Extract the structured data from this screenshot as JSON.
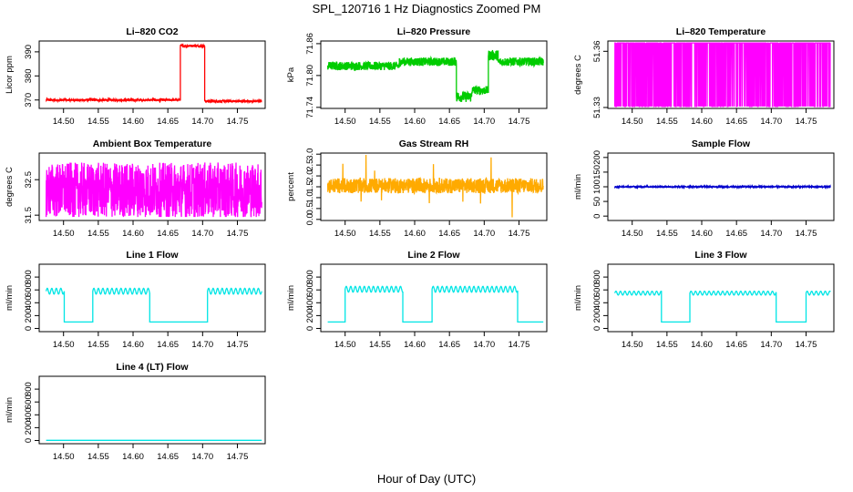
{
  "page_title": "SPL_120716  1 Hz Diagnostics Zoomed PM",
  "x_axis_label": "Hour of Day (UTC)",
  "colors": {
    "red": "#ff0000",
    "green": "#00cc00",
    "magenta": "#ff00ff",
    "orange": "#ffaa00",
    "blue": "#0000cc",
    "cyan": "#00e5e5"
  },
  "chart_data": [
    {
      "id": "co2",
      "type": "line",
      "title": "Li–820 CO2",
      "ylabel": "Licor ppm",
      "color": "red",
      "xlim": [
        14.465,
        14.79
      ],
      "ylim": [
        366.5,
        394.5
      ],
      "xticks": [
        "14.50",
        "14.55",
        "14.60",
        "14.65",
        "14.70",
        "14.75"
      ],
      "yticks": [
        "370",
        "380",
        "390"
      ],
      "segments": [
        {
          "x0": 14.475,
          "x1": 14.668,
          "level": 370.0,
          "noise": 0.45
        },
        {
          "x0": 14.668,
          "x1": 14.703,
          "level": 392.5,
          "noise": 0.5
        },
        {
          "x0": 14.703,
          "x1": 14.785,
          "level": 369.5,
          "noise": 0.45
        }
      ]
    },
    {
      "id": "pressure",
      "type": "line",
      "title": "Li–820 Pressure",
      "ylabel": "kPa",
      "color": "green",
      "xlim": [
        14.465,
        14.79
      ],
      "ylim": [
        71.738,
        71.865
      ],
      "xticks": [
        "14.50",
        "14.55",
        "14.60",
        "14.65",
        "14.70",
        "14.75"
      ],
      "yticks": [
        "71.74",
        "71.80",
        "71.86"
      ],
      "segments": [
        {
          "x0": 14.475,
          "x1": 14.578,
          "level": 71.818,
          "noise": 0.008
        },
        {
          "x0": 14.578,
          "x1": 14.66,
          "level": 71.826,
          "noise": 0.008
        },
        {
          "x0": 14.66,
          "x1": 14.682,
          "level": 71.76,
          "noise": 0.01
        },
        {
          "x0": 14.682,
          "x1": 14.706,
          "level": 71.772,
          "noise": 0.008
        },
        {
          "x0": 14.706,
          "x1": 14.72,
          "level": 71.838,
          "noise": 0.01
        },
        {
          "x0": 14.72,
          "x1": 14.785,
          "level": 71.826,
          "noise": 0.008
        }
      ]
    },
    {
      "id": "licor_temp",
      "type": "line",
      "title": "Li–820 Temperature",
      "ylabel": "degrees C",
      "color": "magenta",
      "xlim": [
        14.465,
        14.79
      ],
      "ylim": [
        51.3295,
        51.3655
      ],
      "xticks": [
        "14.50",
        "14.55",
        "14.60",
        "14.65",
        "14.70",
        "14.75"
      ],
      "yticks": [
        "51.33",
        "51.36"
      ],
      "levels": [
        51.3305,
        51.3645
      ]
    },
    {
      "id": "box_temp",
      "type": "line",
      "title": "Ambient Box Temperature",
      "ylabel": "degrees C",
      "color": "magenta",
      "xlim": [
        14.465,
        14.79
      ],
      "ylim": [
        31.35,
        33.25
      ],
      "xticks": [
        "14.50",
        "14.55",
        "14.60",
        "14.65",
        "14.70",
        "14.75"
      ],
      "yticks": [
        "31.5",
        "32.5"
      ],
      "range": [
        31.45,
        33.1
      ],
      "center": 32.2
    },
    {
      "id": "rh",
      "type": "line",
      "title": "Gas Stream RH",
      "ylabel": "percent",
      "color": "orange",
      "xlim": [
        14.465,
        14.79
      ],
      "ylim": [
        -0.05,
        3.05
      ],
      "xticks": [
        "14.50",
        "14.55",
        "14.60",
        "14.65",
        "14.70",
        "14.75"
      ],
      "yticks": [
        "0.0",
        "0.5",
        "1.0",
        "1.5",
        "2.0",
        "2.5",
        "3.0"
      ],
      "center": 1.55,
      "noise": 0.35
    },
    {
      "id": "sample_flow",
      "type": "line",
      "title": "Sample Flow",
      "ylabel": "ml/min",
      "color": "blue",
      "xlim": [
        14.465,
        14.79
      ],
      "ylim": [
        -15,
        215
      ],
      "xticks": [
        "14.50",
        "14.55",
        "14.60",
        "14.65",
        "14.70",
        "14.75"
      ],
      "yticks": [
        "0",
        "50",
        "100",
        "150",
        "200"
      ],
      "level": 100,
      "noise": 2
    },
    {
      "id": "line1",
      "type": "line",
      "title": "Line 1 Flow",
      "ylabel": "ml/min",
      "color": "cyan",
      "xlim": [
        14.465,
        14.79
      ],
      "ylim": [
        -50,
        1000
      ],
      "xticks": [
        "14.50",
        "14.55",
        "14.60",
        "14.65",
        "14.70",
        "14.75"
      ],
      "yticks": [
        "0",
        "200",
        "400",
        "600",
        "800"
      ],
      "segments": [
        {
          "x0": 14.475,
          "x1": 14.501,
          "level": 580,
          "wave": 45
        },
        {
          "x0": 14.501,
          "x1": 14.542,
          "level": 100,
          "wave": 0
        },
        {
          "x0": 14.542,
          "x1": 14.624,
          "level": 580,
          "wave": 45
        },
        {
          "x0": 14.624,
          "x1": 14.707,
          "level": 100,
          "wave": 0
        },
        {
          "x0": 14.707,
          "x1": 14.785,
          "level": 580,
          "wave": 45
        }
      ]
    },
    {
      "id": "line2",
      "type": "line",
      "title": "Line 2 Flow",
      "ylabel": "ml/min",
      "color": "cyan",
      "xlim": [
        14.465,
        14.79
      ],
      "ylim": [
        -50,
        1000
      ],
      "xticks": [
        "14.50",
        "14.55",
        "14.60",
        "14.65",
        "14.70",
        "14.75"
      ],
      "yticks": [
        "0",
        "200",
        "400",
        "600",
        "800"
      ],
      "segments": [
        {
          "x0": 14.475,
          "x1": 14.5,
          "level": 100,
          "wave": 0
        },
        {
          "x0": 14.5,
          "x1": 14.583,
          "level": 610,
          "wave": 45
        },
        {
          "x0": 14.583,
          "x1": 14.625,
          "level": 100,
          "wave": 0
        },
        {
          "x0": 14.625,
          "x1": 14.748,
          "level": 610,
          "wave": 45
        },
        {
          "x0": 14.748,
          "x1": 14.785,
          "level": 100,
          "wave": 0
        }
      ]
    },
    {
      "id": "line3",
      "type": "line",
      "title": "Line 3 Flow",
      "ylabel": "ml/min",
      "color": "cyan",
      "xlim": [
        14.465,
        14.79
      ],
      "ylim": [
        -50,
        1000
      ],
      "xticks": [
        "14.50",
        "14.55",
        "14.60",
        "14.65",
        "14.70",
        "14.75"
      ],
      "yticks": [
        "0",
        "200",
        "400",
        "600",
        "800"
      ],
      "segments": [
        {
          "x0": 14.475,
          "x1": 14.542,
          "level": 550,
          "wave": 30
        },
        {
          "x0": 14.542,
          "x1": 14.583,
          "level": 100,
          "wave": 0
        },
        {
          "x0": 14.583,
          "x1": 14.707,
          "level": 550,
          "wave": 30
        },
        {
          "x0": 14.707,
          "x1": 14.75,
          "level": 100,
          "wave": 0
        },
        {
          "x0": 14.75,
          "x1": 14.785,
          "level": 550,
          "wave": 30
        }
      ]
    },
    {
      "id": "line4",
      "type": "line",
      "title": "Line 4 (LT) Flow",
      "ylabel": "ml/min",
      "color": "cyan",
      "xlim": [
        14.465,
        14.79
      ],
      "ylim": [
        -50,
        1000
      ],
      "xticks": [
        "14.50",
        "14.55",
        "14.60",
        "14.65",
        "14.70",
        "14.75"
      ],
      "yticks": [
        "0",
        "200",
        "400",
        "600",
        "800"
      ],
      "segments": [
        {
          "x0": 14.475,
          "x1": 14.785,
          "level": 3,
          "wave": 0
        }
      ]
    }
  ]
}
